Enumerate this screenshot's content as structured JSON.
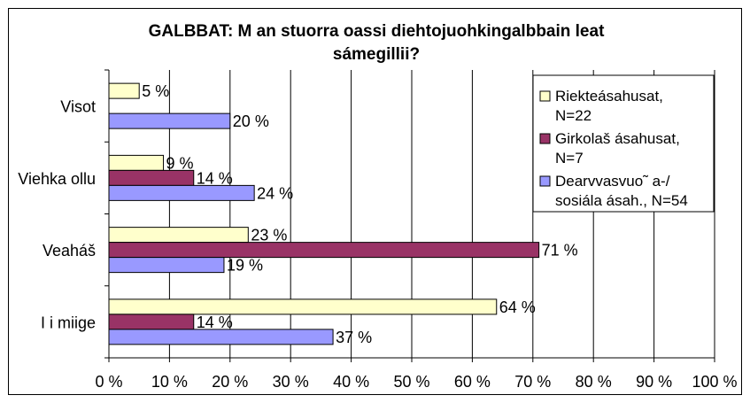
{
  "chart_data": {
    "type": "bar",
    "orientation": "horizontal",
    "title_line1": "GALBBAT: M an stuorra oassi diehtojuohkingalbbain leat",
    "title_line2": "sámegillii?",
    "categories": [
      "Visot",
      "Viehka ollu",
      "Veaháš",
      "I i miige"
    ],
    "series": [
      {
        "name": "Riekteásahusat, N=22",
        "legend_lines": [
          "Riekteásahusat,",
          "N=22"
        ],
        "color": "#ffffcc",
        "values": [
          5,
          9,
          23,
          64
        ],
        "labels": [
          "5 %",
          "9 %",
          "23 %",
          "64 %"
        ]
      },
      {
        "name": "Girkolaš ásahusat, N=7",
        "legend_lines": [
          "Girkolaš ásahusat,",
          "N=7"
        ],
        "color": "#993366",
        "values": [
          null,
          14,
          71,
          14
        ],
        "labels": [
          "",
          "14 %",
          "71 %",
          "14 %"
        ]
      },
      {
        "name": "Dearvvasvuo˜ a-/ sosiála ásah., N=54",
        "legend_lines": [
          "Dearvvasvuo˜ a-/",
          "sosiála ásah., N=54"
        ],
        "color": "#9999ff",
        "values": [
          20,
          24,
          19,
          37
        ],
        "labels": [
          "20 %",
          "24 %",
          "19 %",
          "37 %"
        ]
      }
    ],
    "xlim": [
      0,
      100
    ],
    "xticks": [
      "0 %",
      "10 %",
      "20 %",
      "30 %",
      "40 %",
      "50 %",
      "60 %",
      "70 %",
      "80 %",
      "90 %",
      "100 %"
    ],
    "grid": true,
    "legend_position": "top-right"
  }
}
